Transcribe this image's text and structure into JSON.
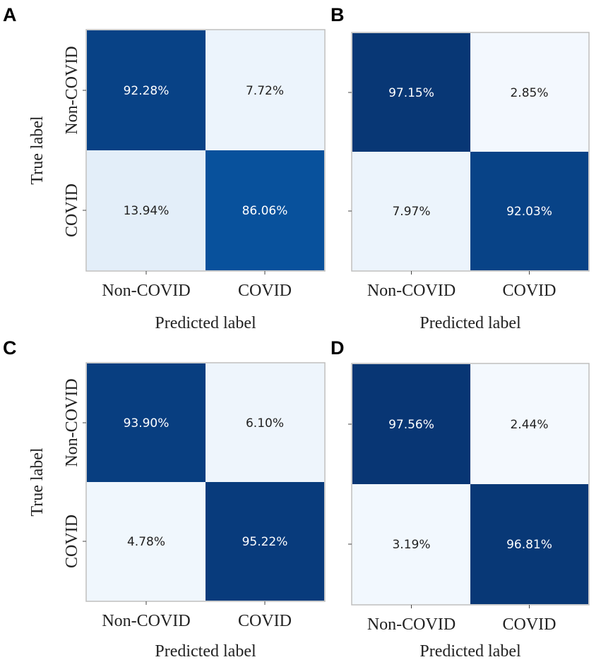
{
  "chart_data": [
    {
      "panel": "A",
      "type": "heatmap",
      "title": "",
      "xlabel": "Predicted label",
      "ylabel": "True label",
      "x_categories": [
        "Non-COVID",
        "COVID"
      ],
      "y_categories": [
        "Non-COVID",
        "COVID"
      ],
      "values": [
        [
          92.28,
          7.72
        ],
        [
          13.94,
          86.06
        ]
      ],
      "cell_labels": [
        [
          "92.28%",
          "7.72%"
        ],
        [
          "13.94%",
          "86.06%"
        ]
      ],
      "colormap": "Blues"
    },
    {
      "panel": "B",
      "type": "heatmap",
      "title": "",
      "xlabel": "Predicted label",
      "ylabel": "",
      "x_categories": [
        "Non-COVID",
        "COVID"
      ],
      "y_categories": [],
      "values": [
        [
          97.15,
          2.85
        ],
        [
          7.97,
          92.03
        ]
      ],
      "cell_labels": [
        [
          "97.15%",
          "2.85%"
        ],
        [
          "7.97%",
          "92.03%"
        ]
      ],
      "colormap": "Blues"
    },
    {
      "panel": "C",
      "type": "heatmap",
      "title": "",
      "xlabel": "Predicted label",
      "ylabel": "True label",
      "x_categories": [
        "Non-COVID",
        "COVID"
      ],
      "y_categories": [
        "Non-COVID",
        "COVID"
      ],
      "values": [
        [
          93.9,
          6.1
        ],
        [
          4.78,
          95.22
        ]
      ],
      "cell_labels": [
        [
          "93.90%",
          "6.10%"
        ],
        [
          "4.78%",
          "95.22%"
        ]
      ],
      "colormap": "Blues"
    },
    {
      "panel": "D",
      "type": "heatmap",
      "title": "",
      "xlabel": "Predicted label",
      "ylabel": "",
      "x_categories": [
        "Non-COVID",
        "COVID"
      ],
      "y_categories": [],
      "values": [
        [
          97.56,
          2.44
        ],
        [
          3.19,
          96.81
        ]
      ],
      "cell_labels": [
        [
          "97.56%",
          "2.44%"
        ],
        [
          "3.19%",
          "96.81%"
        ]
      ],
      "colormap": "Blues"
    }
  ],
  "colors": {
    "low": "#f7fbff",
    "mid_low": "#e3eef9",
    "mid": "#6baed6",
    "high": "#08519c",
    "max": "#08306b",
    "text_dark": "#222222",
    "text_light": "#ffffff"
  }
}
